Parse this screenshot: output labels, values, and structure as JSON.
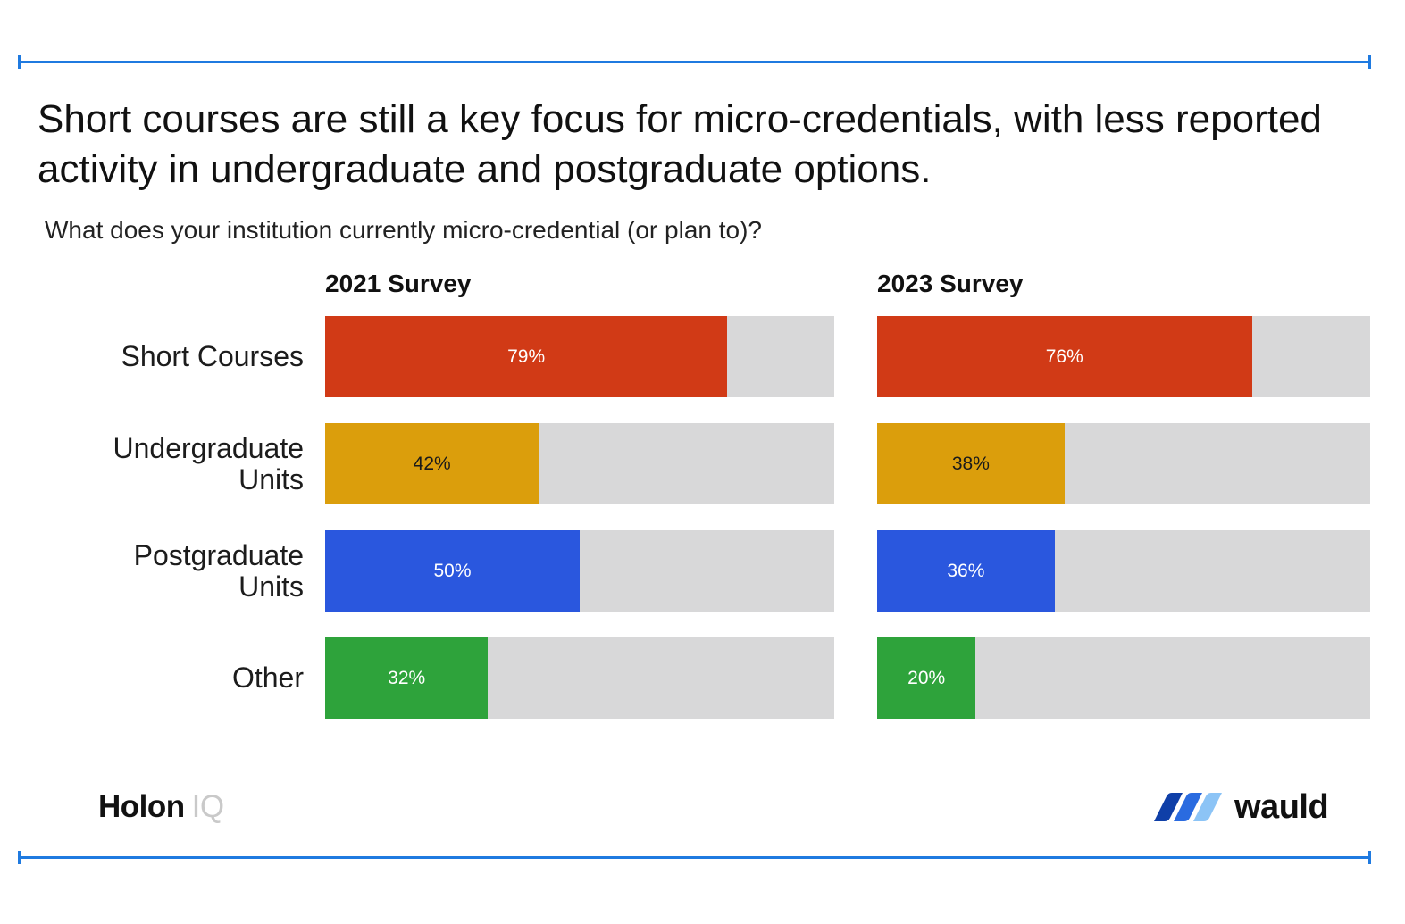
{
  "title": "Short courses are still a key focus for micro-credentials, with less reported activity in undergraduate and postgraduate options.",
  "subtitle": "What does your institution currently micro-credential (or plan to)?",
  "chart_data": {
    "type": "bar",
    "orientation": "horizontal",
    "title": "Short courses are still a key focus for micro-credentials, with less reported activity in undergraduate and postgraduate options.",
    "subtitle": "What does your institution currently micro-credential (or plan to)?",
    "categories": [
      {
        "label_lines": [
          "Short Courses"
        ]
      },
      {
        "label_lines": [
          "Undergraduate",
          "Units"
        ]
      },
      {
        "label_lines": [
          "Postgraduate",
          "Units"
        ]
      },
      {
        "label_lines": [
          "Other"
        ]
      }
    ],
    "category_names": [
      "Short Courses",
      "Undergraduate Units",
      "Postgraduate Units",
      "Other"
    ],
    "colors": [
      "#d13a16",
      "#db9e0c",
      "#2a57de",
      "#2ea33b"
    ],
    "label_colors": [
      "#ffffff",
      "#1a1a1a",
      "#ffffff",
      "#ffffff"
    ],
    "track_color": "#d8d8d9",
    "xlim": [
      0,
      100
    ],
    "series": [
      {
        "name": "2021 Survey",
        "values": [
          79,
          42,
          50,
          32
        ],
        "labels": [
          "79%",
          "42%",
          "50%",
          "32%"
        ]
      },
      {
        "name": "2023 Survey",
        "values": [
          76,
          38,
          36,
          20
        ],
        "labels": [
          "76%",
          "38%",
          "36%",
          "20%"
        ]
      }
    ]
  },
  "logos": {
    "holon": "Holon",
    "iq": "IQ",
    "wauld": "wauld"
  },
  "accent_color": "#1f7ae0"
}
